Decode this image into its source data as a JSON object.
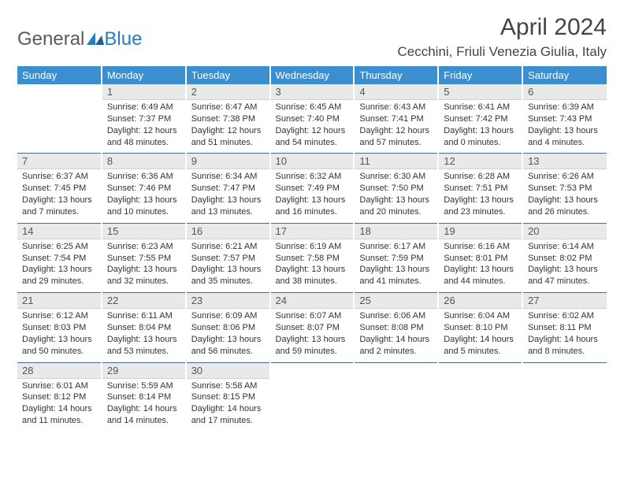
{
  "logo": {
    "text1": "General",
    "text2": "Blue"
  },
  "title": "April 2024",
  "location": "Cecchini, Friuli Venezia Giulia, Italy",
  "colors": {
    "header_bg": "#3b8fcf",
    "header_text": "#ffffff",
    "daynum_bg": "#e9e9e9",
    "body_text": "#333333",
    "sep": "#4a6a88",
    "logo_gray": "#5a5a5a",
    "logo_blue": "#2b7bbf"
  },
  "weekdays": [
    "Sunday",
    "Monday",
    "Tuesday",
    "Wednesday",
    "Thursday",
    "Friday",
    "Saturday"
  ],
  "weeks": [
    [
      {
        "day": "",
        "sunrise": "",
        "sunset": "",
        "daylight": ""
      },
      {
        "day": "1",
        "sunrise": "Sunrise: 6:49 AM",
        "sunset": "Sunset: 7:37 PM",
        "daylight": "Daylight: 12 hours and 48 minutes."
      },
      {
        "day": "2",
        "sunrise": "Sunrise: 6:47 AM",
        "sunset": "Sunset: 7:38 PM",
        "daylight": "Daylight: 12 hours and 51 minutes."
      },
      {
        "day": "3",
        "sunrise": "Sunrise: 6:45 AM",
        "sunset": "Sunset: 7:40 PM",
        "daylight": "Daylight: 12 hours and 54 minutes."
      },
      {
        "day": "4",
        "sunrise": "Sunrise: 6:43 AM",
        "sunset": "Sunset: 7:41 PM",
        "daylight": "Daylight: 12 hours and 57 minutes."
      },
      {
        "day": "5",
        "sunrise": "Sunrise: 6:41 AM",
        "sunset": "Sunset: 7:42 PM",
        "daylight": "Daylight: 13 hours and 0 minutes."
      },
      {
        "day": "6",
        "sunrise": "Sunrise: 6:39 AM",
        "sunset": "Sunset: 7:43 PM",
        "daylight": "Daylight: 13 hours and 4 minutes."
      }
    ],
    [
      {
        "day": "7",
        "sunrise": "Sunrise: 6:37 AM",
        "sunset": "Sunset: 7:45 PM",
        "daylight": "Daylight: 13 hours and 7 minutes."
      },
      {
        "day": "8",
        "sunrise": "Sunrise: 6:36 AM",
        "sunset": "Sunset: 7:46 PM",
        "daylight": "Daylight: 13 hours and 10 minutes."
      },
      {
        "day": "9",
        "sunrise": "Sunrise: 6:34 AM",
        "sunset": "Sunset: 7:47 PM",
        "daylight": "Daylight: 13 hours and 13 minutes."
      },
      {
        "day": "10",
        "sunrise": "Sunrise: 6:32 AM",
        "sunset": "Sunset: 7:49 PM",
        "daylight": "Daylight: 13 hours and 16 minutes."
      },
      {
        "day": "11",
        "sunrise": "Sunrise: 6:30 AM",
        "sunset": "Sunset: 7:50 PM",
        "daylight": "Daylight: 13 hours and 20 minutes."
      },
      {
        "day": "12",
        "sunrise": "Sunrise: 6:28 AM",
        "sunset": "Sunset: 7:51 PM",
        "daylight": "Daylight: 13 hours and 23 minutes."
      },
      {
        "day": "13",
        "sunrise": "Sunrise: 6:26 AM",
        "sunset": "Sunset: 7:53 PM",
        "daylight": "Daylight: 13 hours and 26 minutes."
      }
    ],
    [
      {
        "day": "14",
        "sunrise": "Sunrise: 6:25 AM",
        "sunset": "Sunset: 7:54 PM",
        "daylight": "Daylight: 13 hours and 29 minutes."
      },
      {
        "day": "15",
        "sunrise": "Sunrise: 6:23 AM",
        "sunset": "Sunset: 7:55 PM",
        "daylight": "Daylight: 13 hours and 32 minutes."
      },
      {
        "day": "16",
        "sunrise": "Sunrise: 6:21 AM",
        "sunset": "Sunset: 7:57 PM",
        "daylight": "Daylight: 13 hours and 35 minutes."
      },
      {
        "day": "17",
        "sunrise": "Sunrise: 6:19 AM",
        "sunset": "Sunset: 7:58 PM",
        "daylight": "Daylight: 13 hours and 38 minutes."
      },
      {
        "day": "18",
        "sunrise": "Sunrise: 6:17 AM",
        "sunset": "Sunset: 7:59 PM",
        "daylight": "Daylight: 13 hours and 41 minutes."
      },
      {
        "day": "19",
        "sunrise": "Sunrise: 6:16 AM",
        "sunset": "Sunset: 8:01 PM",
        "daylight": "Daylight: 13 hours and 44 minutes."
      },
      {
        "day": "20",
        "sunrise": "Sunrise: 6:14 AM",
        "sunset": "Sunset: 8:02 PM",
        "daylight": "Daylight: 13 hours and 47 minutes."
      }
    ],
    [
      {
        "day": "21",
        "sunrise": "Sunrise: 6:12 AM",
        "sunset": "Sunset: 8:03 PM",
        "daylight": "Daylight: 13 hours and 50 minutes."
      },
      {
        "day": "22",
        "sunrise": "Sunrise: 6:11 AM",
        "sunset": "Sunset: 8:04 PM",
        "daylight": "Daylight: 13 hours and 53 minutes."
      },
      {
        "day": "23",
        "sunrise": "Sunrise: 6:09 AM",
        "sunset": "Sunset: 8:06 PM",
        "daylight": "Daylight: 13 hours and 56 minutes."
      },
      {
        "day": "24",
        "sunrise": "Sunrise: 6:07 AM",
        "sunset": "Sunset: 8:07 PM",
        "daylight": "Daylight: 13 hours and 59 minutes."
      },
      {
        "day": "25",
        "sunrise": "Sunrise: 6:06 AM",
        "sunset": "Sunset: 8:08 PM",
        "daylight": "Daylight: 14 hours and 2 minutes."
      },
      {
        "day": "26",
        "sunrise": "Sunrise: 6:04 AM",
        "sunset": "Sunset: 8:10 PM",
        "daylight": "Daylight: 14 hours and 5 minutes."
      },
      {
        "day": "27",
        "sunrise": "Sunrise: 6:02 AM",
        "sunset": "Sunset: 8:11 PM",
        "daylight": "Daylight: 14 hours and 8 minutes."
      }
    ],
    [
      {
        "day": "28",
        "sunrise": "Sunrise: 6:01 AM",
        "sunset": "Sunset: 8:12 PM",
        "daylight": "Daylight: 14 hours and 11 minutes."
      },
      {
        "day": "29",
        "sunrise": "Sunrise: 5:59 AM",
        "sunset": "Sunset: 8:14 PM",
        "daylight": "Daylight: 14 hours and 14 minutes."
      },
      {
        "day": "30",
        "sunrise": "Sunrise: 5:58 AM",
        "sunset": "Sunset: 8:15 PM",
        "daylight": "Daylight: 14 hours and 17 minutes."
      },
      {
        "day": "",
        "sunrise": "",
        "sunset": "",
        "daylight": ""
      },
      {
        "day": "",
        "sunrise": "",
        "sunset": "",
        "daylight": ""
      },
      {
        "day": "",
        "sunrise": "",
        "sunset": "",
        "daylight": ""
      },
      {
        "day": "",
        "sunrise": "",
        "sunset": "",
        "daylight": ""
      }
    ]
  ]
}
